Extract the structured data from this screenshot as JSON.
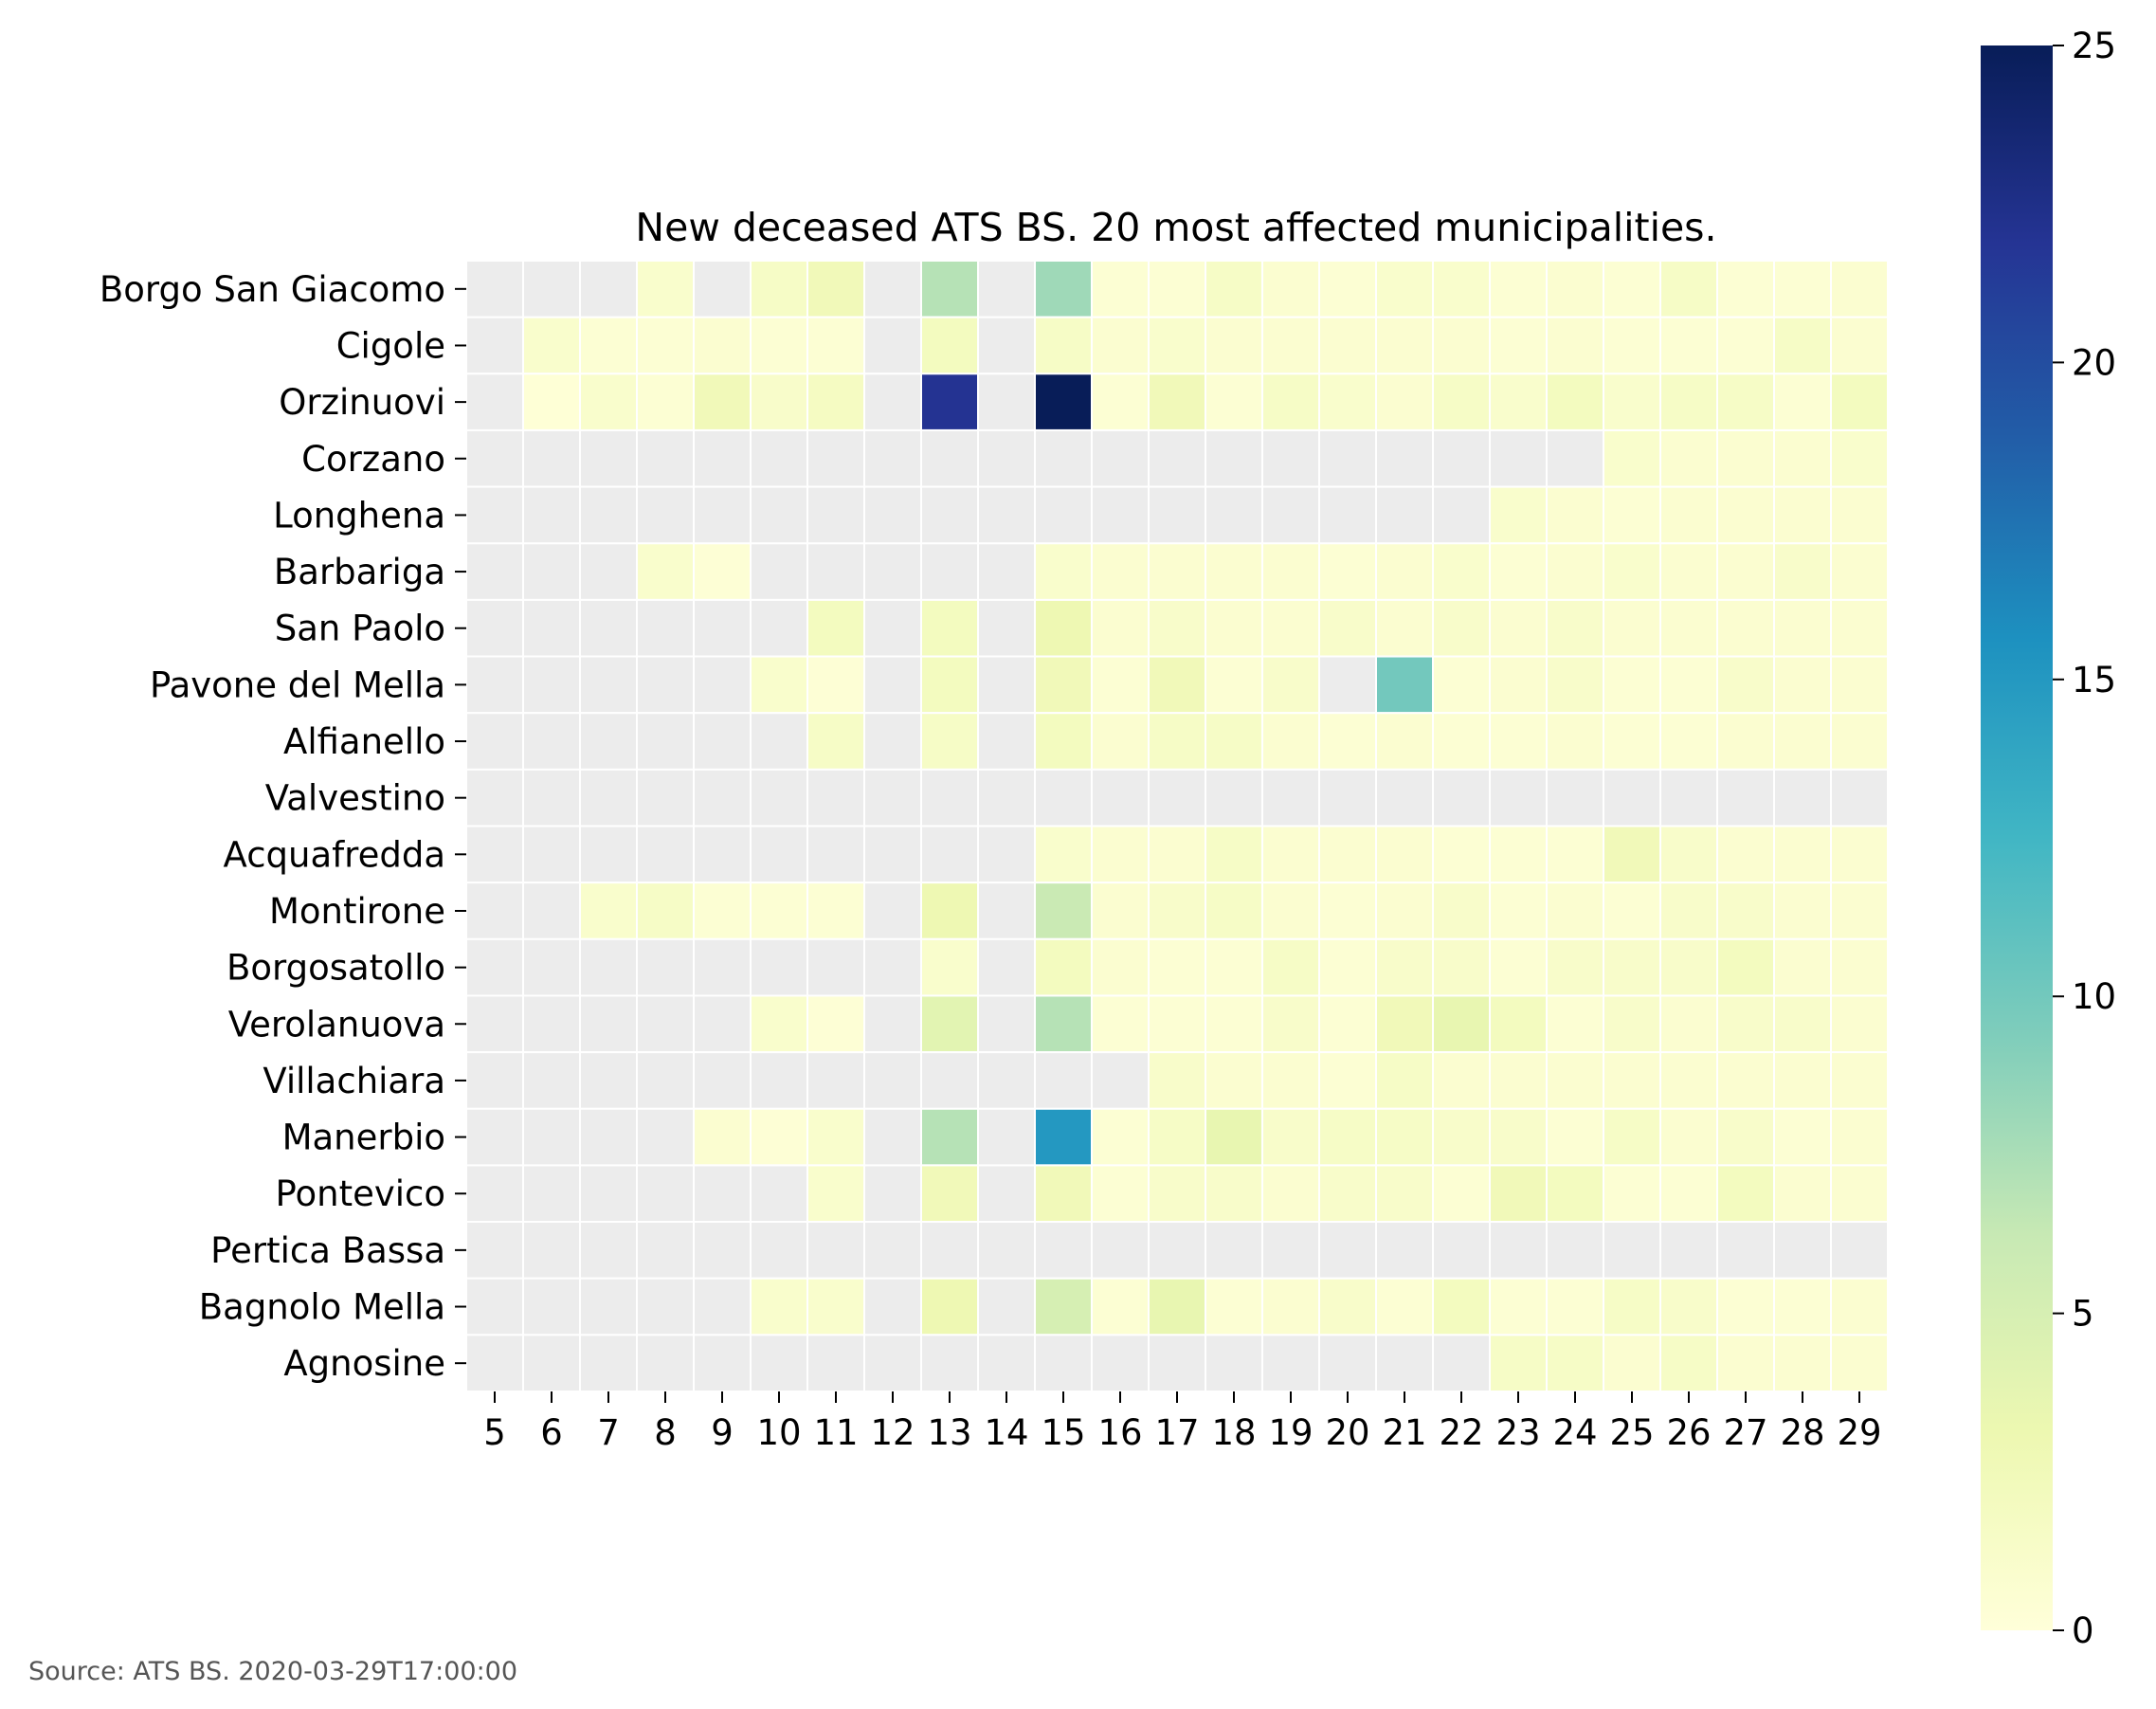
{
  "source_note": "Source: ATS BS. 2020-03-29T17:00:00",
  "colors": {
    "missing": "#ececec",
    "gridline": "#ffffff",
    "colormap": "YlGnBu",
    "colormap_stops": [
      "#ffffd9",
      "#edf8b1",
      "#c7e9b4",
      "#7fcdbb",
      "#41b6c4",
      "#1d91c0",
      "#225ea8",
      "#253494",
      "#081d58"
    ]
  },
  "chart_data": {
    "type": "heatmap",
    "title": "New deceased ATS BS. 20 most affected municipalities.",
    "x": [
      "5",
      "6",
      "7",
      "8",
      "9",
      "10",
      "11",
      "12",
      "13",
      "14",
      "15",
      "16",
      "17",
      "18",
      "19",
      "20",
      "21",
      "22",
      "23",
      "24",
      "25",
      "26",
      "27",
      "28",
      "29"
    ],
    "y": [
      "Borgo San Giacomo",
      "Cigole",
      "Orzinuovi",
      "Corzano",
      "Longhena",
      "Barbariga",
      "San Paolo",
      "Pavone del Mella",
      "Alfianello",
      "Valvestino",
      "Acquafredda",
      "Montirone",
      "Borgosatollo",
      "Verolanuova",
      "Villachiara",
      "Manerbio",
      "Pontevico",
      "Pertica Bassa",
      "Bagnolo Mella",
      "Agnosine"
    ],
    "values": [
      [
        null,
        null,
        null,
        1,
        null,
        1.5,
        2.5,
        null,
        7,
        null,
        8,
        0.5,
        0.5,
        1.5,
        0.7,
        0.5,
        1,
        1,
        0.5,
        0.7,
        0.5,
        1.5,
        0.5,
        0.5,
        0.7
      ],
      [
        null,
        1,
        0.5,
        0.5,
        0.7,
        0.5,
        0.5,
        null,
        2,
        null,
        1.5,
        0.7,
        1,
        0.7,
        0.7,
        0.7,
        0.7,
        0.7,
        0.5,
        0.7,
        0.5,
        0.5,
        0.5,
        1.5,
        0.7
      ],
      [
        null,
        0.2,
        1,
        0.5,
        2.5,
        1.2,
        1.8,
        null,
        22,
        null,
        25,
        0.5,
        2.5,
        0.5,
        1.5,
        1,
        0.7,
        1.5,
        1,
        2,
        1,
        1.5,
        1.5,
        0.5,
        2
      ],
      [
        null,
        null,
        null,
        null,
        null,
        null,
        null,
        null,
        null,
        null,
        null,
        null,
        null,
        null,
        null,
        null,
        null,
        null,
        null,
        null,
        1,
        0.7,
        0.7,
        0.7,
        1
      ],
      [
        null,
        null,
        null,
        null,
        null,
        null,
        null,
        null,
        null,
        null,
        null,
        null,
        null,
        null,
        null,
        null,
        null,
        null,
        1,
        0.7,
        0.5,
        0.7,
        0.7,
        0.7,
        0.7
      ],
      [
        null,
        null,
        null,
        1,
        0.3,
        null,
        null,
        null,
        null,
        null,
        1,
        0.7,
        0.7,
        0.7,
        0.7,
        0.5,
        0.7,
        1,
        0.5,
        0.7,
        1,
        0.7,
        0.7,
        1.2,
        0.7
      ],
      [
        null,
        null,
        null,
        null,
        null,
        null,
        2,
        null,
        2,
        null,
        3,
        0.7,
        1.2,
        0.7,
        0.7,
        1.2,
        0.7,
        1.2,
        0.7,
        1.2,
        0.7,
        0.7,
        0.7,
        0.7,
        0.7
      ],
      [
        null,
        null,
        null,
        null,
        null,
        1,
        0.3,
        null,
        2,
        null,
        2.5,
        0.5,
        2.5,
        0.5,
        1.2,
        null,
        10,
        0.5,
        0.7,
        1.2,
        0.5,
        0.5,
        1.2,
        0.7,
        0.7
      ],
      [
        null,
        null,
        null,
        null,
        null,
        null,
        1.5,
        null,
        1.5,
        null,
        2,
        0.7,
        1.5,
        1.5,
        0.7,
        0.5,
        0.7,
        0.5,
        0.5,
        0.7,
        0.5,
        0.5,
        0.7,
        0.7,
        0.7
      ],
      [
        null,
        null,
        null,
        null,
        null,
        null,
        null,
        null,
        null,
        null,
        null,
        null,
        null,
        null,
        null,
        null,
        null,
        null,
        null,
        null,
        null,
        null,
        null,
        null,
        null
      ],
      [
        null,
        null,
        null,
        null,
        null,
        null,
        null,
        null,
        null,
        null,
        1,
        0.7,
        0.7,
        1.5,
        0.7,
        0.7,
        0.7,
        0.5,
        0.5,
        0.5,
        2.5,
        1.2,
        0.7,
        0.7,
        0.7
      ],
      [
        null,
        null,
        1,
        1.5,
        0.5,
        0.5,
        0.5,
        null,
        3,
        null,
        6,
        0.7,
        1.2,
        1.5,
        0.7,
        0.5,
        0.7,
        1.2,
        0.5,
        0.7,
        0.5,
        1.2,
        1.2,
        0.7,
        0.7
      ],
      [
        null,
        null,
        null,
        null,
        null,
        null,
        null,
        null,
        1,
        null,
        2,
        0.7,
        0.5,
        0.5,
        1.5,
        0.5,
        1.2,
        1.2,
        0.5,
        1.2,
        1.2,
        1.2,
        2,
        0.7,
        0.7
      ],
      [
        null,
        null,
        null,
        null,
        null,
        1,
        0.3,
        null,
        4,
        null,
        7,
        0.5,
        0.5,
        0.5,
        1.2,
        0.5,
        2.5,
        3.5,
        2,
        0.5,
        1.2,
        0.7,
        1.2,
        1.2,
        0.7
      ],
      [
        null,
        null,
        null,
        null,
        null,
        null,
        null,
        null,
        null,
        null,
        null,
        null,
        1.2,
        0.7,
        0.7,
        0.5,
        1.5,
        0.7,
        0.7,
        0.7,
        0.7,
        0.7,
        0.7,
        0.7,
        0.7
      ],
      [
        null,
        null,
        null,
        null,
        0.7,
        0.3,
        1,
        null,
        7,
        null,
        15,
        0.5,
        1.5,
        3.5,
        1.2,
        1.5,
        1.5,
        1.2,
        1.2,
        0.5,
        1.5,
        0.7,
        1.2,
        0.5,
        0.7
      ],
      [
        null,
        null,
        null,
        null,
        null,
        null,
        1,
        null,
        2.5,
        null,
        2.5,
        0.5,
        1.2,
        1.2,
        0.7,
        1.2,
        1.2,
        0.5,
        2.5,
        2,
        0.5,
        0.5,
        2,
        0.7,
        0.7
      ],
      [
        null,
        null,
        null,
        null,
        null,
        null,
        null,
        null,
        null,
        null,
        null,
        null,
        null,
        null,
        null,
        null,
        null,
        null,
        null,
        null,
        null,
        null,
        null,
        null,
        null
      ],
      [
        null,
        null,
        null,
        null,
        null,
        1,
        1,
        null,
        3,
        null,
        5,
        0.5,
        3.5,
        0.5,
        0.7,
        1.2,
        0.5,
        2,
        0.5,
        0.5,
        1.5,
        1.2,
        0.5,
        0.5,
        0.7
      ],
      [
        null,
        null,
        null,
        null,
        null,
        null,
        null,
        null,
        null,
        null,
        null,
        null,
        null,
        null,
        null,
        null,
        null,
        null,
        1.5,
        1.5,
        0.7,
        1.5,
        0.7,
        0.7,
        0.7
      ]
    ],
    "colorbar": {
      "min": 0,
      "max": 25,
      "ticks": [
        0,
        5,
        10,
        15,
        20,
        25
      ]
    }
  }
}
